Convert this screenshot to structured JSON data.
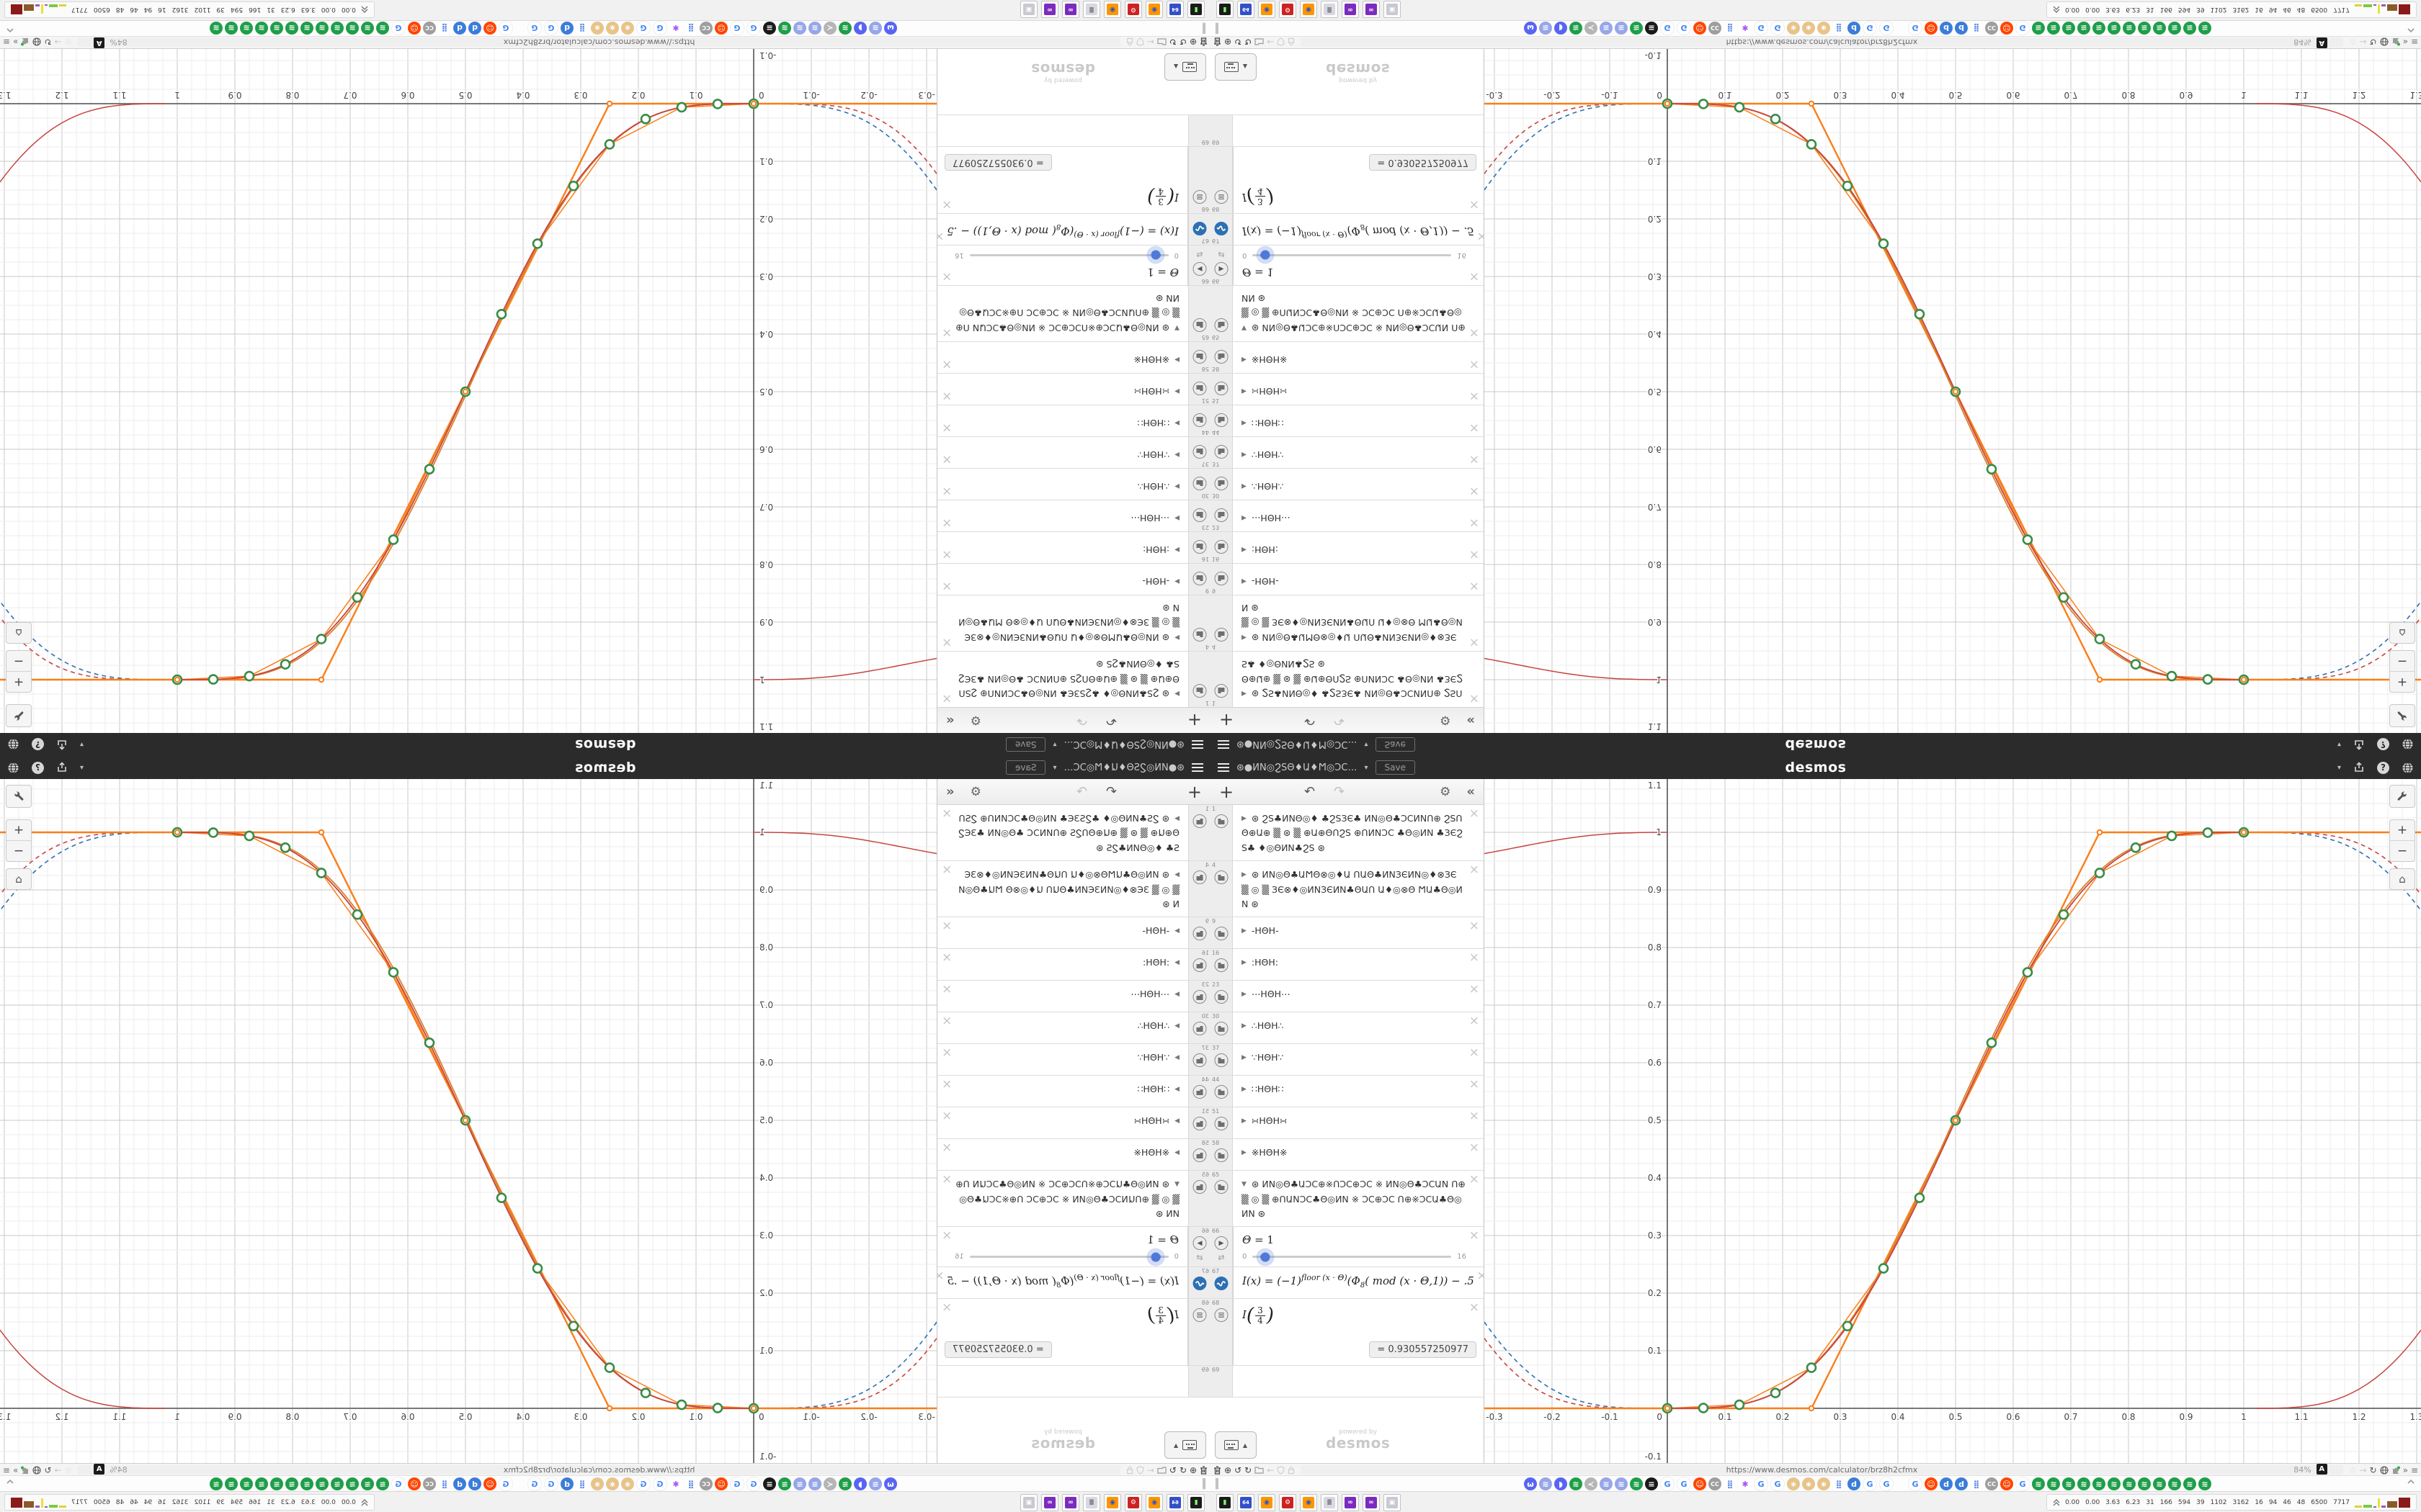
{
  "app": {
    "logo": "desmos"
  },
  "header": {
    "title": "⊛●ИΝ◎ϨЅΘ♦Ա♦Ϻ◎ƆϹ…",
    "save_label": "Save",
    "right_icons": [
      "account-caret",
      "share",
      "help",
      "language-globe"
    ]
  },
  "panel": {
    "toolbar": {
      "add": "+",
      "undo": "↶",
      "redo": "↷",
      "gear": "⚙",
      "collapse": "«"
    },
    "powered_by": "powered by",
    "watermark": "desmos",
    "keyboard_toggle": "▲"
  },
  "expressions": [
    {
      "n": "1",
      "kind": "folder",
      "expanded": false,
      "title": "⊛ ϨЅ♣ИΝΘ◎♦ ♣ϨЅЗЄ♣ ИΝ◎Θ♣ƆϹИΝՈ⊕ ϨЅՈΘ⊕Ա⊕ ▒ ⊛ ▒ ⊕Ա⊕ΘՈϨЅ ⊕ՈИΝƆϹ ♣Θ◎ИΝ ♣ЗЄϨЅ♣ ♦◎ΘИΝ♣ϨЅ ⊛"
    },
    {
      "n": "4",
      "kind": "folder",
      "expanded": false,
      "title": "⊛ ИΝ◎Θ♣ԱϺΘ⊗◎♦Ա ՈԱΘ♣ИΝЗЄИΝ◎♦⊗ЗЄ ▒ ◎ ▒ ЗЄ⊗♦◎ИΝЗЄИΝ♣ΘԱՈ Ա♦◎⊗Θ ϺԱ♣Θ◎ИΝ ⊛"
    },
    {
      "n": "9",
      "kind": "folder",
      "expanded": false,
      "title": "-ΗΘΗ-"
    },
    {
      "n": "16",
      "kind": "folder",
      "expanded": false,
      "title": ":ΗΘΗ:"
    },
    {
      "n": "23",
      "kind": "folder",
      "expanded": false,
      "title": "⋯ΗΘΗ⋯"
    },
    {
      "n": "30",
      "kind": "folder",
      "expanded": false,
      "title": "∴ΗΘΗ∴"
    },
    {
      "n": "37",
      "kind": "folder",
      "expanded": false,
      "title": "∵ΗΘΗ∵"
    },
    {
      "n": "44",
      "kind": "folder",
      "expanded": false,
      "title": "∷ΗΘΗ∷"
    },
    {
      "n": "51",
      "kind": "folder",
      "expanded": false,
      "title": "∺ΗΘΗ∺"
    },
    {
      "n": "58",
      "kind": "folder",
      "expanded": false,
      "title": "※ΗΘΗ※"
    },
    {
      "n": "65",
      "kind": "folder",
      "expanded": true,
      "title": "⊛ ИΝ◎Θ♣ԱƆϹ⊕※ՈƆϹ⊕ƆϹ ※ ИΝ◎Θ♣ƆϹԱΝ Ո⊕ ▒ ◎ ▒ ⊕ՈԱΝƆϹ♣Θ◎ИΝ ※ ƆϹ⊕ƆϹ Ո⊕※ƆϹԱ♣Θ◎ИΝ ⊛"
    },
    {
      "n": "66",
      "kind": "slider",
      "child": true,
      "latex": "Θ = 1",
      "slider_min": "0",
      "slider_max": "16",
      "value": 1,
      "max": 16
    },
    {
      "n": "67",
      "kind": "formula",
      "child": true,
      "parts": {
        "lhs": "I(x) = (−1)",
        "sup": "floor (x · Θ)",
        "mid": "(Φ",
        "sub": "8",
        "tail": "( mod (x · Θ,1)) − .5"
      }
    },
    {
      "n": "68",
      "kind": "eval",
      "child": true,
      "func": "I",
      "num": "3",
      "den": "4",
      "result": "= 0.930557250977"
    },
    {
      "n": "69",
      "kind": "empty"
    }
  ],
  "graph": {
    "controls": {
      "zoom_in": "+",
      "zoom_out": "−",
      "home": "⌂"
    },
    "chart_data": {
      "type": "line",
      "title": "Smoothstep square-wave interpolation  I(x) = (−1)^floor(x·Θ)(Φ₈(mod(x·Θ,1)) − .5",
      "xlabel": "",
      "ylabel": "",
      "x_axis": {
        "min": -0.3175,
        "max": 1.3075,
        "tick_step": 0.1,
        "minor_step": 0.025,
        "tick_labels": [
          "-0.3",
          "-0.2",
          "-0.1",
          "0",
          "0.1",
          "0.2",
          "0.3",
          "0.4",
          "0.5",
          "0.6",
          "0.7",
          "0.8",
          "0.9",
          "1",
          "1.1",
          "1.2",
          "1.3"
        ]
      },
      "y_axis": {
        "min": -0.095,
        "max": 1.0925,
        "tick_step": 0.1,
        "minor_step": 0.025,
        "tick_labels": [
          "1.1",
          "1",
          "0.9",
          "0.8",
          "0.7",
          "0.6",
          "0.5",
          "0.4",
          "0.3",
          "0.2",
          "0.1",
          "-0.1"
        ]
      },
      "grid": true,
      "series": [
        {
          "name": "smooth-sigmoid-red",
          "color": "#c74440",
          "style": "solid"
        },
        {
          "name": "smooth-sigmoid-orange",
          "color": "#d9822b",
          "style": "solid"
        },
        {
          "name": "linear-interpolation-orange",
          "color": "#fa7e19",
          "style": "solid",
          "knots": [
            [
              0,
              0
            ],
            [
              0.25,
              0
            ],
            [
              0.5,
              0.5
            ],
            [
              0.75,
              1
            ],
            [
              1,
              1
            ]
          ]
        },
        {
          "name": "periodic-continuation-red-dashed",
          "color": "#c74440",
          "style": "dashed"
        },
        {
          "name": "periodic-continuation-blue-dashed",
          "color": "#2d70b3",
          "style": "dashed"
        }
      ],
      "sample_points": [
        [
          0,
          0
        ],
        [
          0.0625,
          0.0005
        ],
        [
          0.125,
          0.0062
        ],
        [
          0.1875,
          0.0267
        ],
        [
          0.25,
          0.0706
        ],
        [
          0.3125,
          0.1428
        ],
        [
          0.375,
          0.243
        ],
        [
          0.4375,
          0.3654
        ],
        [
          0.5,
          0.5
        ],
        [
          0.5625,
          0.6346
        ],
        [
          0.625,
          0.757
        ],
        [
          0.6875,
          0.8572
        ],
        [
          0.75,
          0.9294
        ],
        [
          0.8125,
          0.9733
        ],
        [
          0.875,
          0.9938
        ],
        [
          0.9375,
          0.9995
        ],
        [
          1,
          1
        ]
      ],
      "point_color": "#388c46"
    }
  },
  "browser": {
    "url": "https://www.desmos.com/calculator/brz8h2cfmx",
    "zoom_level": "84%",
    "left_icons": [
      "trash",
      "globe-plus",
      "rotate-ccw",
      "rotate-cw",
      "folder",
      "back-arrow",
      "shield",
      "lock"
    ],
    "right_icons": [
      "translate",
      "star",
      "forward-arrow",
      "reload",
      "globe",
      "extension",
      "chevrons",
      "menu"
    ],
    "tab_indicator": "║",
    "favicons": [
      "discord",
      "wave",
      "chat",
      "greenwave",
      "fish",
      "wave",
      "wave",
      "greenwave",
      "trash",
      "google",
      "google",
      "reddit",
      "cc",
      "grid",
      "pinwheel",
      "google",
      "google",
      "doily",
      "doily",
      "doily",
      "grid",
      "desmos-d",
      "google",
      "google",
      "spacer",
      "google",
      "reddit",
      "desmos-d",
      "desmos-d",
      "grid",
      "cc",
      "reddit",
      "google",
      "greenwave",
      "greenwave",
      "greenwave",
      "greenwave",
      "greenwave",
      "greenwave",
      "greenwave",
      "greenwave",
      "greenwave",
      "greenwave",
      "greenwave",
      "greenwave"
    ],
    "taskbar_apps": [
      "terminal",
      "floppy64",
      "firefox",
      "red-gear",
      "firefox",
      "scroll",
      "owl",
      "owl",
      "window"
    ],
    "system_tray": {
      "values": [
        "0.00",
        "0.00",
        "3.63",
        "6.23",
        "31",
        "166",
        "594",
        "39",
        "1102",
        "3162",
        "16",
        "94",
        "46",
        "48",
        "6500",
        "7717"
      ],
      "spark_bars": [
        {
          "color": "#ddd43a",
          "w": 10,
          "h": 3
        },
        {
          "color": "#7ac943",
          "w": 12,
          "h": 4
        },
        {
          "color": "#9b59b6",
          "w": 4,
          "h": 2
        },
        {
          "color": "#e8e23c",
          "w": 3,
          "h": 13
        },
        {
          "color": "#9b59b6",
          "w": 6,
          "h": 3
        },
        {
          "color": "#8b5a2b",
          "w": 14,
          "h": 9
        },
        {
          "color": "#8b1a1a",
          "w": 16,
          "h": 14
        }
      ]
    }
  }
}
